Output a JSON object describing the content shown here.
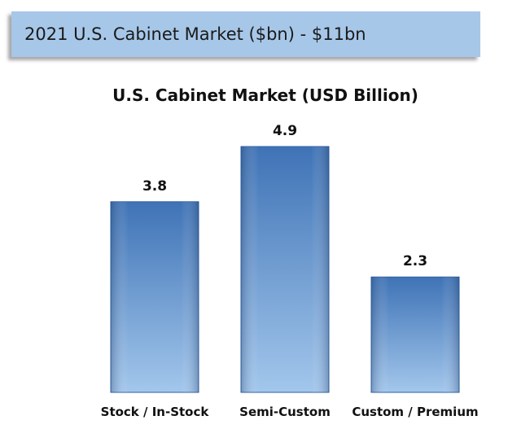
{
  "banner": {
    "text": "2021 U.S. Cabinet Market ($bn) - $11bn"
  },
  "colors": {
    "banner_background": "#a7c7e8",
    "bar_dark": "#3f73b6",
    "bar_light": "#9fc4ea"
  },
  "chart_data": {
    "type": "bar",
    "title": "U.S. Cabinet Market (USD Billion)",
    "categories": [
      "Stock / In-Stock",
      "Semi-Custom",
      "Custom / Premium"
    ],
    "values": [
      3.8,
      4.9,
      2.3
    ],
    "data_labels": [
      "3.8",
      "4.9",
      "2.3"
    ],
    "xlabel": "",
    "ylabel": "",
    "ylim": [
      0,
      4.9
    ],
    "grid": false,
    "legend": "none"
  }
}
